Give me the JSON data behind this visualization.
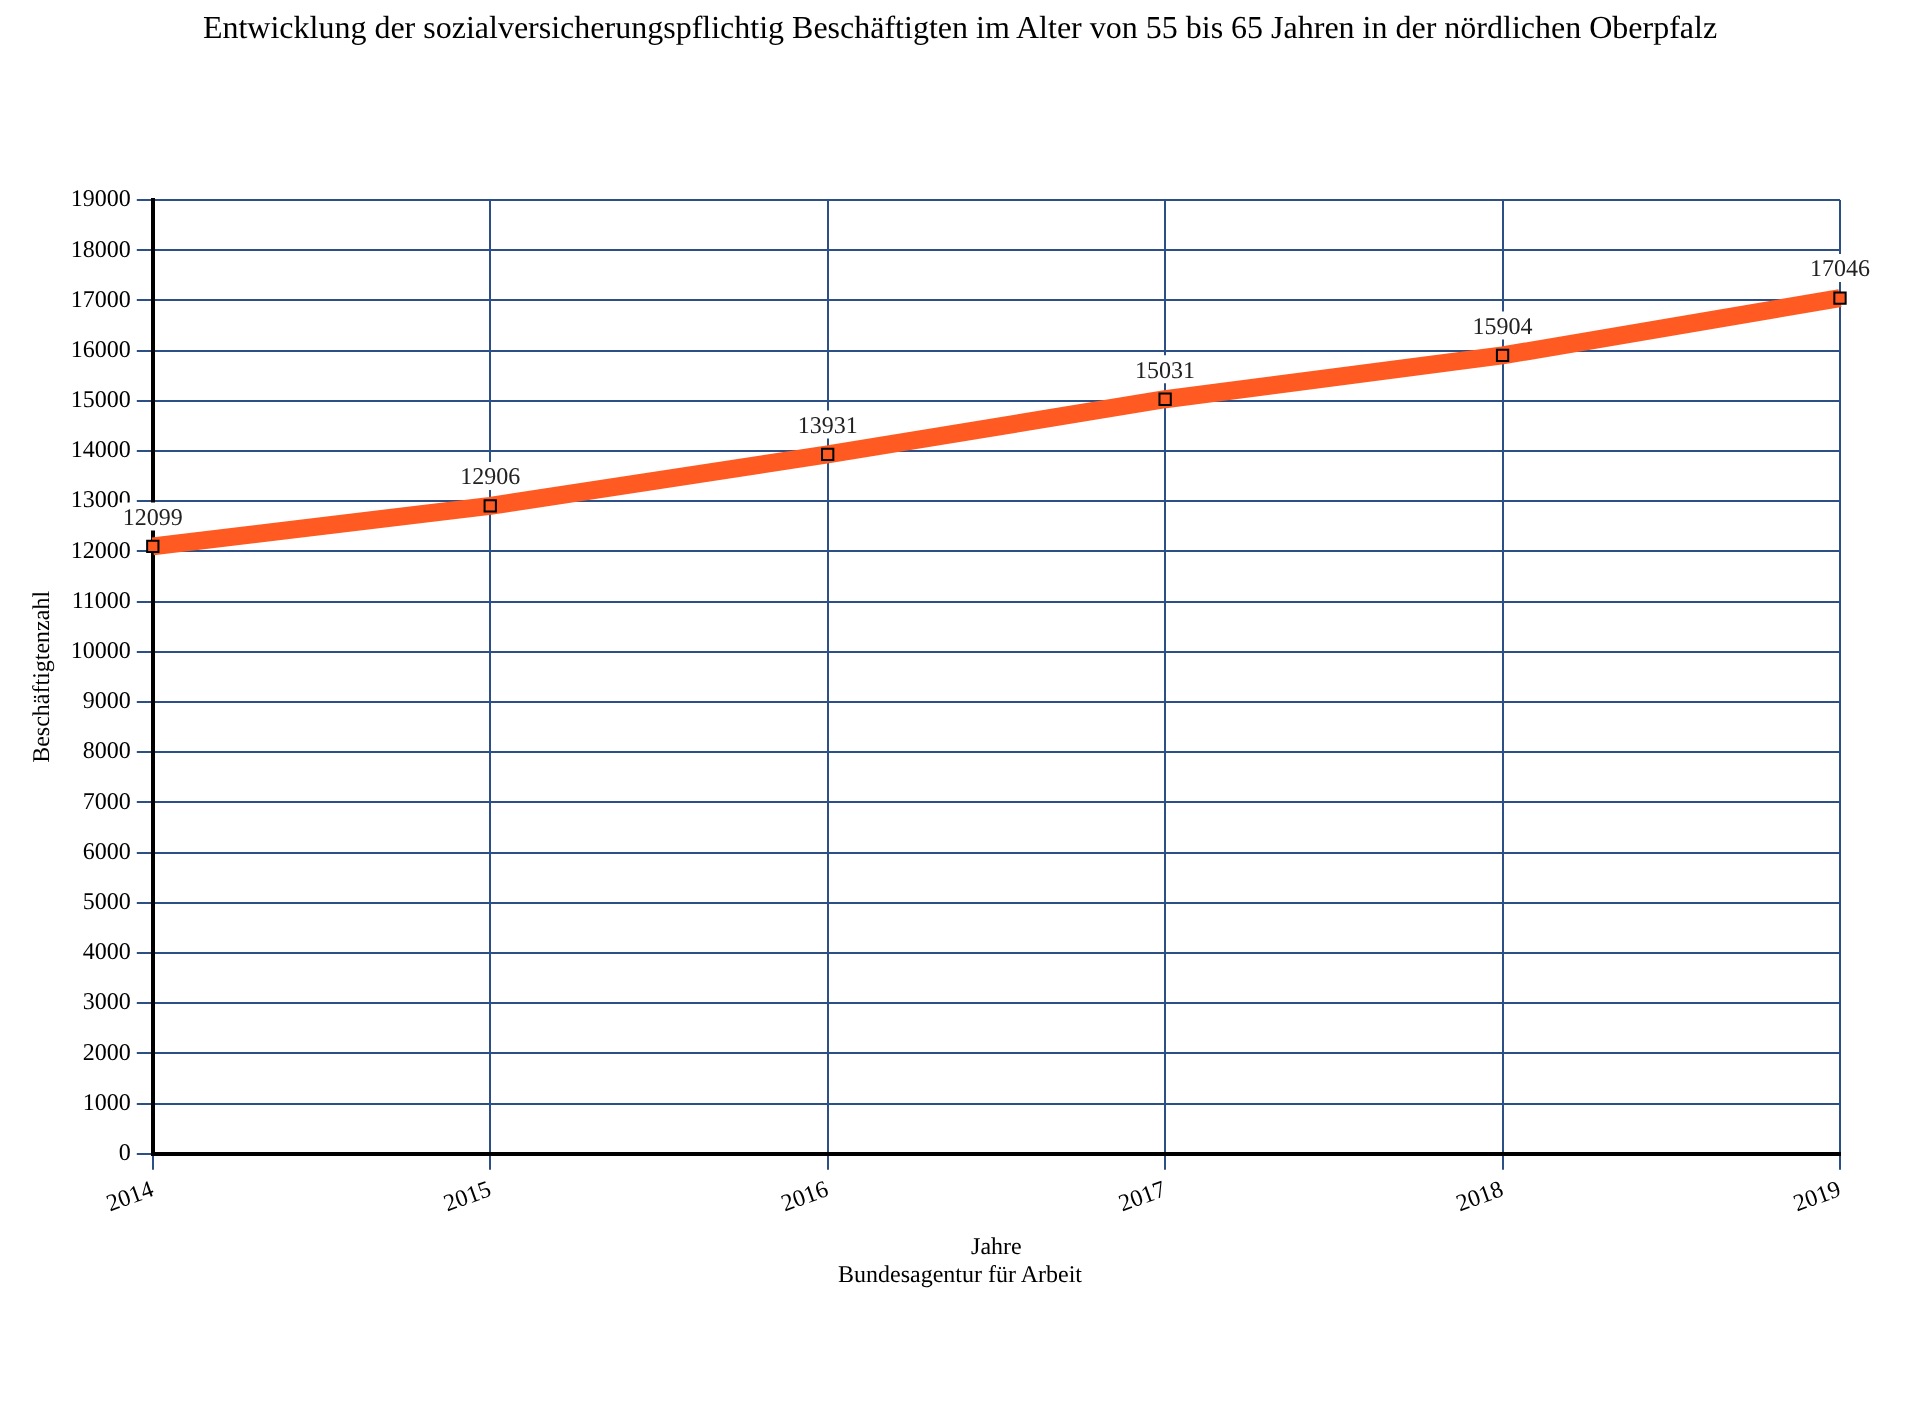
{
  "chart_data": {
    "type": "line",
    "title": "Entwicklung der sozialversicherungspflichtig Beschäftigten im Alter von 55 bis 65 Jahren in der nördlichen Oberpfalz",
    "xlabel": "Jahre",
    "ylabel": "Beschäftigtenzahl",
    "annotations": [
      "Bundesagentur für Arbeit"
    ],
    "categories": [
      "2014",
      "2015",
      "2016",
      "2017",
      "2018",
      "2019"
    ],
    "series": [
      {
        "color": "#ff5a22",
        "values": [
          12099,
          12906,
          13931,
          15031,
          15904,
          17046
        ]
      }
    ],
    "ylim": [
      0,
      19000
    ],
    "yticks": [
      0,
      1000,
      2000,
      3000,
      4000,
      5000,
      6000,
      7000,
      8000,
      9000,
      10000,
      11000,
      12000,
      13000,
      14000,
      15000,
      16000,
      17000,
      18000,
      19000
    ],
    "grid": true,
    "legend": false,
    "marker": "square",
    "line_style": "solid",
    "data_labels": true
  }
}
